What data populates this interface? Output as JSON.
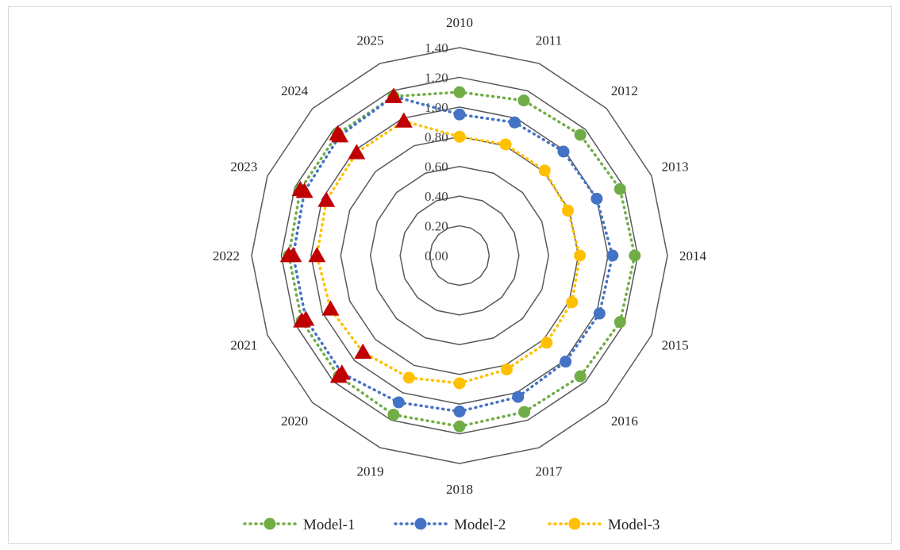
{
  "chart_data": {
    "type": "radar",
    "categories": [
      "2010",
      "2011",
      "2012",
      "2013",
      "2014",
      "2015",
      "2016",
      "2017",
      "2018",
      "2019",
      "2020",
      "2021",
      "2022",
      "2023",
      "2024",
      "2025"
    ],
    "rlim": [
      0,
      1.4
    ],
    "ticks": [
      "0.00",
      "0.20",
      "0.40",
      "0.60",
      "0.80",
      "1.00",
      "1.20",
      "1.40"
    ],
    "grid": true,
    "legend_position": "bottom",
    "series": [
      {
        "name": "Model-1",
        "color": "#70ad47",
        "line_style": "dotted",
        "marker": "circle",
        "values": [
          1.1,
          1.13,
          1.15,
          1.17,
          1.18,
          1.17,
          1.15,
          1.14,
          1.15,
          1.16,
          1.15,
          1.15,
          1.15,
          1.16,
          1.16,
          1.16
        ]
      },
      {
        "name": "Model-2",
        "color": "#4472c4",
        "line_style": "dotted",
        "marker": "circle",
        "values": [
          0.95,
          0.97,
          0.99,
          1.0,
          1.03,
          1.02,
          1.01,
          1.03,
          1.05,
          1.07,
          1.12,
          1.12,
          1.12,
          1.13,
          1.14,
          1.16
        ],
        "highlight_from_index": 10
      },
      {
        "name": "Model-3",
        "color": "#ffc000",
        "line_style": "dotted",
        "marker": "circle",
        "values": [
          0.8,
          0.81,
          0.81,
          0.79,
          0.81,
          0.82,
          0.83,
          0.83,
          0.86,
          0.89,
          0.92,
          0.94,
          0.96,
          0.97,
          0.98,
          0.98
        ],
        "highlight_from_index": 10
      }
    ],
    "highlight_marker": {
      "shape": "triangle",
      "color": "#c00000"
    }
  }
}
